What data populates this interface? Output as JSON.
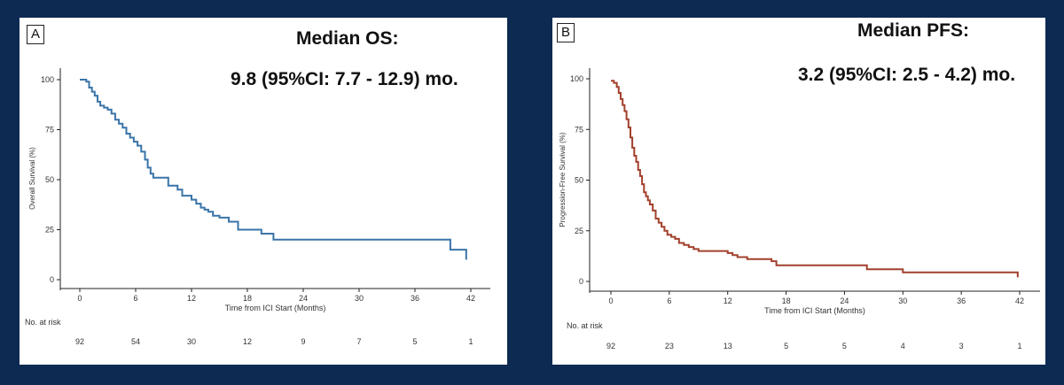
{
  "colors": {
    "background": "#0d2a52",
    "panel": "#ffffff",
    "os_line": "#3a74a8",
    "pfs_line": "#a2402c"
  },
  "panels": [
    {
      "letter": "A",
      "title": "Median OS:",
      "value": "9.8 (95%CI: 7.7 - 12.9) mo.",
      "risk_label": "No. at risk",
      "risk": [
        "92",
        "54",
        "30",
        "12",
        "9",
        "7",
        "5",
        "1"
      ]
    },
    {
      "letter": "B",
      "title": "Median PFS:",
      "value": "3.2 (95%CI: 2.5 - 4.2) mo.",
      "risk_label": "No. at risk",
      "risk": [
        "92",
        "23",
        "13",
        "5",
        "5",
        "4",
        "3",
        "1"
      ]
    }
  ],
  "chart_data": [
    {
      "type": "line",
      "step": true,
      "xlabel": "Time from ICI Start (Months)",
      "ylabel": "Overall Survival (%)",
      "xlim": [
        0,
        42
      ],
      "ylim": [
        0,
        100
      ],
      "xticks": [
        0,
        6,
        12,
        18,
        24,
        30,
        36,
        42
      ],
      "yticks": [
        0,
        25,
        50,
        75,
        100
      ],
      "grid": false,
      "series": [
        {
          "x": [
            0,
            0.3,
            0.7,
            1.0,
            1.3,
            1.6,
            1.9,
            2.2,
            2.6,
            3.0,
            3.4,
            3.8,
            4.2,
            4.6,
            5.0,
            5.4,
            5.8,
            6.2,
            6.6,
            7.0,
            7.3,
            7.6,
            7.9,
            8.3,
            9.5,
            10.5,
            11.0,
            12.0,
            12.5,
            13.0,
            13.4,
            13.8,
            14.3,
            15.0,
            16.0,
            17.0,
            19.5,
            20.8,
            36.6,
            39.8,
            41.5
          ],
          "y": [
            100,
            100,
            99,
            96,
            94,
            92,
            89,
            87,
            86,
            85,
            83,
            80,
            78,
            76,
            73,
            71,
            69,
            67,
            64,
            60,
            56,
            53,
            51,
            51,
            47,
            45,
            42,
            40,
            38,
            36,
            35,
            34,
            32,
            31,
            29,
            25,
            23,
            20,
            20,
            15,
            10
          ]
        }
      ]
    },
    {
      "type": "line",
      "step": true,
      "xlabel": "Time from ICI Start (Months)",
      "ylabel": "Progression-Free Survival (%)",
      "xlim": [
        0,
        42
      ],
      "ylim": [
        0,
        100
      ],
      "xticks": [
        0,
        6,
        12,
        18,
        24,
        30,
        36,
        42
      ],
      "yticks": [
        0,
        25,
        50,
        75,
        100
      ],
      "grid": false,
      "series": [
        {
          "x": [
            0,
            0.3,
            0.6,
            0.8,
            1.0,
            1.2,
            1.4,
            1.6,
            1.8,
            2.0,
            2.2,
            2.4,
            2.6,
            2.8,
            3.0,
            3.2,
            3.4,
            3.6,
            3.8,
            4.0,
            4.3,
            4.6,
            4.9,
            5.2,
            5.5,
            5.8,
            6.2,
            6.6,
            7.0,
            7.5,
            8.0,
            8.5,
            9.0,
            12.0,
            12.5,
            13.0,
            14.0,
            16.5,
            17.0,
            26.3,
            30.0,
            41.8
          ],
          "y": [
            99,
            98,
            96,
            93,
            90,
            87,
            84,
            80,
            76,
            71,
            66,
            62,
            59,
            55,
            52,
            48,
            44,
            42,
            40,
            38,
            35,
            31,
            29,
            27,
            25,
            23,
            22,
            21,
            19,
            18,
            17,
            16,
            15,
            14,
            13,
            12,
            11,
            10,
            8,
            6,
            4.5,
            2
          ]
        }
      ]
    }
  ]
}
